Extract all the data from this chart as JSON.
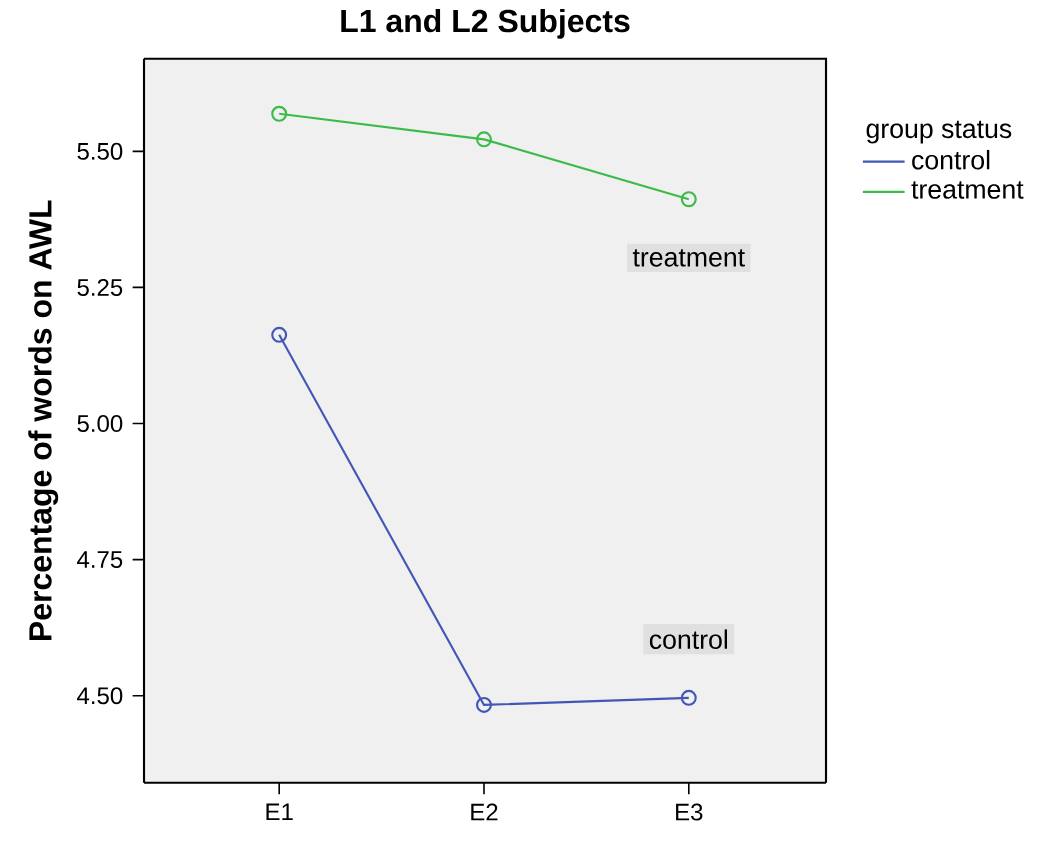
{
  "chart_data": {
    "type": "line",
    "title": "L1 and L2 Subjects",
    "ylabel": "Percentage of words on AWL",
    "legend_title": "group status",
    "categories": [
      "E1",
      "E2",
      "E3"
    ],
    "series": [
      {
        "name": "control",
        "color": "#4257b5",
        "values": [
          5.163,
          4.483,
          4.496
        ]
      },
      {
        "name": "treatment",
        "color": "#3cba4a",
        "values": [
          5.569,
          5.522,
          5.412
        ]
      }
    ],
    "ylim": [
      4.34,
      5.67
    ],
    "yticks": [
      {
        "value": 4.5,
        "label": "4.50"
      },
      {
        "value": 4.75,
        "label": "4.75"
      },
      {
        "value": 5.0,
        "label": "5.00"
      },
      {
        "value": 5.25,
        "label": "5.25"
      },
      {
        "value": 5.5,
        "label": "5.50"
      }
    ],
    "annotations": [
      "control",
      "treatment"
    ],
    "legend": "top right",
    "marker": "circle",
    "line_style": "solid",
    "grid": false
  }
}
